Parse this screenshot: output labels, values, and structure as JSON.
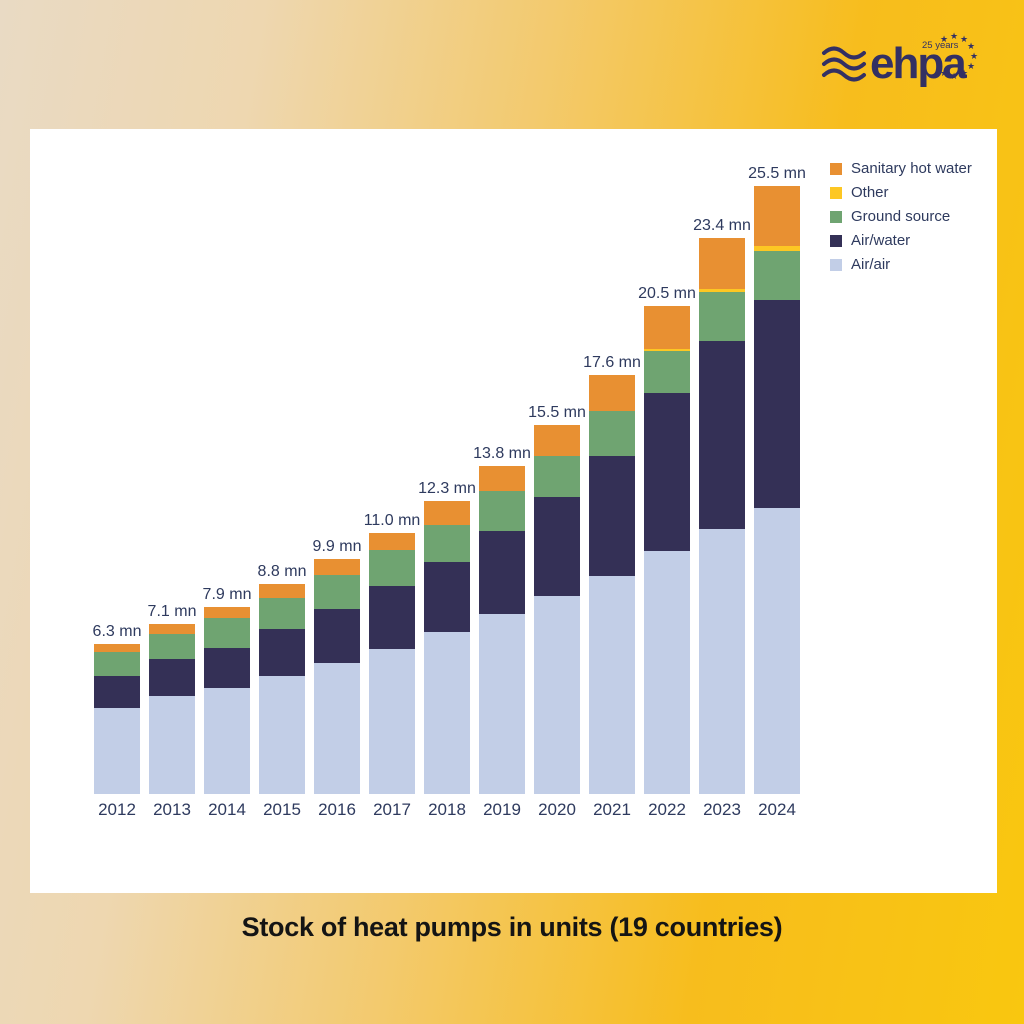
{
  "title": "Stock of heat pumps in units (19 countries)",
  "logo": {
    "name": "ehpa",
    "anniversary": "25 years",
    "color": "#333063"
  },
  "colors": {
    "background_left": "#e9dac4",
    "background_right": "#f7bd1d",
    "card": "#ffffff",
    "label_text": "#2e3a5e",
    "caption_text": "#141414"
  },
  "legend": [
    {
      "key": "sanitary_hot_water",
      "label": "Sanitary hot water",
      "color": "#e89032"
    },
    {
      "key": "other",
      "label": "Other",
      "color": "#fdc723"
    },
    {
      "key": "ground_source",
      "label": "Ground source",
      "color": "#6fa471"
    },
    {
      "key": "air_water",
      "label": "Air/water",
      "color": "#343056"
    },
    {
      "key": "air_air",
      "label": "Air/air",
      "color": "#c2cee7"
    }
  ],
  "chart_data": {
    "type": "bar",
    "subtype": "stacked-vertical",
    "title": "Stock of heat pumps in units (19 countries)",
    "unit": "mn (millions of units)",
    "grid": false,
    "legend_position": "top-right",
    "ylim": [
      0,
      26.5
    ],
    "categories": [
      "2012",
      "2013",
      "2014",
      "2015",
      "2016",
      "2017",
      "2018",
      "2019",
      "2020",
      "2021",
      "2022",
      "2023",
      "2024"
    ],
    "totals": [
      6.3,
      7.1,
      7.9,
      8.8,
      9.9,
      11.0,
      12.3,
      13.8,
      15.5,
      17.6,
      20.5,
      23.4,
      25.5
    ],
    "total_labels": [
      "6.3 mn",
      "7.1 mn",
      "7.9 mn",
      "8.8 mn",
      "9.9 mn",
      "11.0 mn",
      "12.3 mn",
      "13.8 mn",
      "15.5 mn",
      "17.6 mn",
      "20.5 mn",
      "23.4 mn",
      "25.5 mn"
    ],
    "series": [
      {
        "key": "air_air",
        "name": "Air/air",
        "color": "#c2cee7",
        "values": [
          3.6,
          4.1,
          4.45,
          4.95,
          5.52,
          6.09,
          6.8,
          7.55,
          8.3,
          9.15,
          10.2,
          11.15,
          12.0
        ]
      },
      {
        "key": "air_water",
        "name": "Air/water",
        "color": "#343056",
        "values": [
          1.35,
          1.55,
          1.7,
          1.98,
          2.26,
          2.65,
          2.95,
          3.5,
          4.18,
          5.05,
          6.65,
          7.9,
          8.75
        ]
      },
      {
        "key": "ground_source",
        "name": "Ground source",
        "color": "#6fa471",
        "values": [
          1.0,
          1.05,
          1.28,
          1.3,
          1.44,
          1.53,
          1.55,
          1.7,
          1.72,
          1.9,
          1.75,
          2.07,
          2.05
        ]
      },
      {
        "key": "other",
        "name": "Other",
        "color": "#fdc723",
        "values": [
          0,
          0,
          0,
          0,
          0,
          0,
          0,
          0,
          0,
          0,
          0.1,
          0.13,
          0.2
        ]
      },
      {
        "key": "sanitary_hot_water",
        "name": "Sanitary hot water",
        "color": "#e89032",
        "values": [
          0.35,
          0.4,
          0.47,
          0.57,
          0.68,
          0.73,
          1.0,
          1.05,
          1.3,
          1.5,
          1.8,
          2.15,
          2.5
        ]
      }
    ]
  }
}
